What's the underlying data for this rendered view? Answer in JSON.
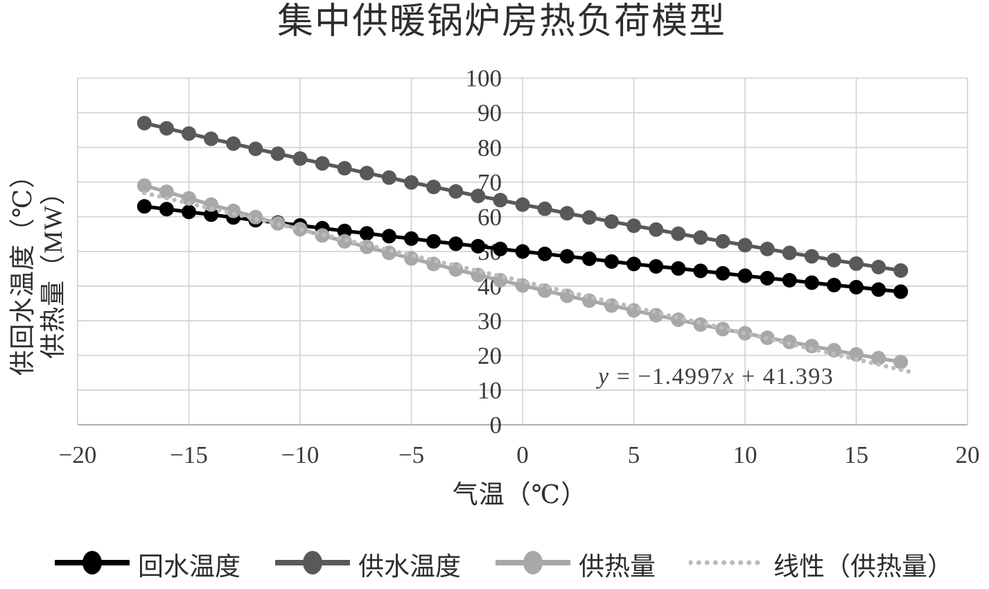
{
  "title": "集中供暖锅炉房热负荷模型",
  "axes": {
    "x_label": "气温（℃）",
    "y_label_lines": [
      "供回水温度（℃）",
      "供热量（MW）"
    ],
    "x_ticks": [
      -20,
      -15,
      -10,
      -5,
      0,
      5,
      10,
      15,
      20
    ],
    "x_tick_labels": [
      "−20",
      "−15",
      "−10",
      "−5",
      "0",
      "5",
      "10",
      "15",
      "20"
    ],
    "y_ticks": [
      0,
      10,
      20,
      30,
      40,
      50,
      60,
      70,
      80,
      90,
      100
    ],
    "y_tick_labels": [
      "0",
      "10",
      "20",
      "30",
      "40",
      "50",
      "60",
      "70",
      "80",
      "90",
      "100"
    ]
  },
  "chart_data": {
    "type": "line",
    "title": "集中供暖锅炉房热负荷模型",
    "xlabel": "气温（℃）",
    "ylabel": "供回水温度（℃）／供热量（MW）",
    "xlim": [
      -20,
      20
    ],
    "ylim": [
      0,
      100
    ],
    "grid": true,
    "legend_position": "bottom",
    "x": [
      -17,
      -16,
      -15,
      -14,
      -13,
      -12,
      -11,
      -10,
      -9,
      -8,
      -7,
      -6,
      -5,
      -4,
      -3,
      -2,
      -1,
      0,
      1,
      2,
      3,
      4,
      5,
      6,
      7,
      8,
      9,
      10,
      11,
      12,
      13,
      14,
      15,
      16,
      17
    ],
    "series": [
      {
        "name": "回水温度",
        "color": "#000000",
        "values": [
          63.0,
          62.2,
          61.4,
          60.6,
          59.8,
          59.0,
          58.3,
          57.5,
          56.7,
          55.9,
          55.2,
          54.4,
          53.7,
          52.9,
          52.2,
          51.5,
          50.7,
          50.0,
          49.3,
          48.6,
          47.9,
          47.1,
          46.4,
          45.7,
          45.1,
          44.4,
          43.7,
          43.0,
          42.3,
          41.7,
          41.0,
          40.3,
          39.7,
          39.0,
          38.4
        ]
      },
      {
        "name": "供水温度",
        "color": "#595959",
        "values": [
          87.0,
          85.5,
          84.0,
          82.5,
          81.1,
          79.6,
          78.2,
          76.8,
          75.4,
          74.0,
          72.6,
          71.3,
          69.9,
          68.6,
          67.3,
          66.0,
          64.8,
          63.5,
          62.3,
          61.0,
          59.8,
          58.6,
          57.4,
          56.3,
          55.1,
          54.0,
          52.9,
          51.8,
          50.7,
          49.6,
          48.6,
          47.5,
          46.5,
          45.5,
          44.5
        ]
      },
      {
        "name": "供热量",
        "color": "#a8a8a8",
        "values": [
          69.0,
          67.2,
          65.3,
          63.5,
          61.7,
          59.9,
          58.1,
          56.4,
          54.6,
          52.9,
          51.3,
          49.6,
          48.0,
          46.4,
          44.8,
          43.2,
          41.7,
          40.2,
          38.7,
          37.2,
          35.8,
          34.4,
          33.0,
          31.6,
          30.3,
          28.9,
          27.6,
          26.4,
          25.1,
          23.9,
          22.7,
          21.5,
          20.3,
          19.2,
          18.1
        ]
      }
    ],
    "trendline": {
      "name": "线性（供热量）",
      "slope": -1.4997,
      "intercept": 41.393,
      "x_start": -17,
      "x_end": 17.5,
      "style": "dotted",
      "color": "#bcbcbc",
      "equation": "y = −1.4997x + 41.393"
    }
  },
  "legend": {
    "items": [
      {
        "label": "回水温度",
        "swatch": "line-marker",
        "color": "#000000"
      },
      {
        "label": "供水温度",
        "swatch": "line-marker",
        "color": "#595959"
      },
      {
        "label": "供热量",
        "swatch": "line-marker",
        "color": "#a8a8a8"
      },
      {
        "label": "线性（供热量）",
        "swatch": "dotted-line",
        "color": "#bcbcbc"
      }
    ]
  },
  "colors": {
    "grid": "#d3d3d3",
    "axis_line": "#b3b3b3",
    "tick_text": "#3a3a3a",
    "title_text": "#2e2e2e",
    "equation_text": "#404040"
  }
}
